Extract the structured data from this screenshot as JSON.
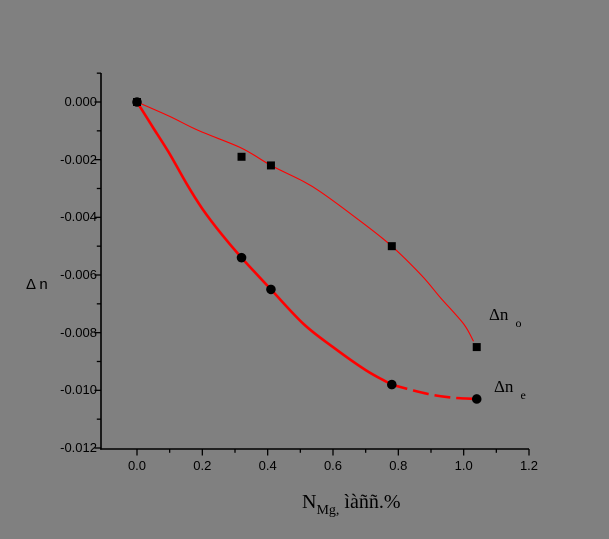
{
  "figure": {
    "background_color": "#808080",
    "axis_color": "#000000",
    "curve_color": "#ff0000",
    "marker_color": "#000000",
    "text_color": "#000000"
  },
  "labels": {
    "y_axis": "Δ n",
    "x_axis_prefix": "N",
    "x_axis_subscript": "Mg,",
    "x_axis_suffix": " ìàññ.%",
    "legend_o_main": "Δn",
    "legend_o_sub": "o",
    "legend_e_main": "Δn",
    "legend_e_sub": "e"
  },
  "chart_data": {
    "type": "scatter",
    "title": "",
    "xlabel": "N_Mg, ìàññ.% (mass %)",
    "ylabel": "Δn",
    "xlim": [
      -0.11,
      1.2
    ],
    "ylim": [
      -0.012,
      0.001
    ],
    "grid": false,
    "legend_position": "right-inside",
    "x_ticks": [
      0.0,
      0.2,
      0.4,
      0.6,
      0.8,
      1.0,
      1.2
    ],
    "x_tick_labels": [
      "0.0",
      "0.2",
      "0.4",
      "0.6",
      "0.8",
      "1.0",
      "1.2"
    ],
    "y_ticks": [
      0.0,
      -0.002,
      -0.004,
      -0.006,
      -0.008,
      -0.01,
      -0.012
    ],
    "y_tick_labels": [
      "0.000",
      "-0.002",
      "-0.004",
      "-0.006",
      "-0.008",
      "-0.010",
      "-0.012"
    ],
    "series": [
      {
        "name": "Δn_o",
        "marker": "square",
        "x": [
          0.0,
          0.32,
          0.41,
          0.78,
          1.04
        ],
        "y": [
          0.0,
          -0.0019,
          -0.0022,
          -0.005,
          -0.0085
        ],
        "line_width": 1.1,
        "fit_curve": [
          [
            0.0,
            0.0
          ],
          [
            0.1,
            -0.0005
          ],
          [
            0.19,
            -0.001
          ],
          [
            0.32,
            -0.0016
          ],
          [
            0.41,
            -0.0022
          ],
          [
            0.5,
            -0.0027
          ],
          [
            0.56,
            -0.0031
          ],
          [
            0.68,
            -0.0041
          ],
          [
            0.78,
            -0.005
          ],
          [
            0.87,
            -0.006
          ],
          [
            0.93,
            -0.0068
          ],
          [
            1.0,
            -0.0077
          ],
          [
            1.03,
            -0.0083
          ]
        ]
      },
      {
        "name": "Δn_e",
        "marker": "circle",
        "x": [
          0.0,
          0.32,
          0.41,
          0.78,
          1.04
        ],
        "y": [
          0.0,
          -0.0054,
          -0.0065,
          -0.0098,
          -0.0103
        ],
        "line_width": 2.6,
        "dash_tail_from_x": 0.78,
        "fit_curve": [
          [
            0.0,
            0.0
          ],
          [
            0.05,
            -0.0009
          ],
          [
            0.1,
            -0.0018
          ],
          [
            0.15,
            -0.0028
          ],
          [
            0.2,
            -0.0037
          ],
          [
            0.26,
            -0.0046
          ],
          [
            0.32,
            -0.0054
          ],
          [
            0.41,
            -0.0065
          ],
          [
            0.51,
            -0.0077
          ],
          [
            0.6,
            -0.0085
          ],
          [
            0.7,
            -0.0093
          ],
          [
            0.78,
            -0.0098
          ],
          [
            0.88,
            -0.0101
          ],
          [
            0.96,
            -0.01025
          ],
          [
            1.04,
            -0.0103
          ]
        ]
      }
    ]
  }
}
